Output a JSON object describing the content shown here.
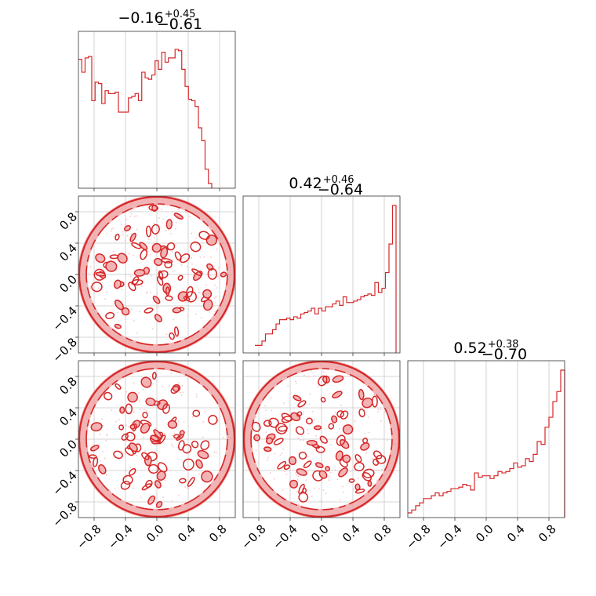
{
  "chart_data": {
    "type": "corner",
    "color": "#d62728",
    "axis_range": [
      -1,
      1
    ],
    "tick_values": [
      -0.8,
      -0.4,
      0.0,
      0.4,
      0.8
    ],
    "tick_labels": [
      "−0.8",
      "−0.4",
      "0.0",
      "0.4",
      "0.8"
    ],
    "grid": true,
    "parameters": [
      {
        "median": "−0.16",
        "plus": "+0.45",
        "minus": "−0.61"
      },
      {
        "median": "0.42",
        "plus": "+0.46",
        "minus": "−0.64"
      },
      {
        "median": "0.52",
        "plus": "+0.38",
        "minus": "−0.70"
      }
    ],
    "histograms": [
      {
        "bin_edges_range": [
          -1,
          0.7
        ],
        "counts": [
          0.87,
          0.78,
          0.88,
          0.89,
          0.58,
          0.71,
          0.7,
          0.56,
          0.65,
          0.63,
          0.63,
          0.64,
          0.5,
          0.5,
          0.5,
          0.6,
          0.61,
          0.63,
          0.58,
          0.78,
          0.74,
          0.73,
          0.76,
          0.86,
          0.8,
          0.92,
          0.85,
          0.88,
          0.88,
          0.94,
          0.93,
          0.8,
          0.68,
          0.59,
          0.58,
          0.54,
          0.39,
          0.3,
          0.1,
          0.0
        ]
      },
      {
        "bin_edges_range": [
          -0.85,
          0.95
        ],
        "counts": [
          0.02,
          0.02,
          0.05,
          0.1,
          0.1,
          0.13,
          0.17,
          0.2,
          0.2,
          0.21,
          0.2,
          0.22,
          0.21,
          0.24,
          0.25,
          0.26,
          0.28,
          0.24,
          0.28,
          0.26,
          0.29,
          0.29,
          0.31,
          0.33,
          0.3,
          0.36,
          0.32,
          0.32,
          0.33,
          0.34,
          0.36,
          0.37,
          0.38,
          0.37,
          0.46,
          0.39,
          0.42,
          0.53,
          0.73,
          1.0
        ]
      },
      {
        "bin_edges_range": [
          -1,
          1
        ],
        "counts": [
          0.0,
          0.02,
          0.05,
          0.07,
          0.1,
          0.1,
          0.12,
          0.14,
          0.12,
          0.14,
          0.15,
          0.17,
          0.17,
          0.18,
          0.2,
          0.19,
          0.16,
          0.28,
          0.25,
          0.26,
          0.26,
          0.24,
          0.26,
          0.29,
          0.28,
          0.29,
          0.31,
          0.35,
          0.32,
          0.33,
          0.38,
          0.36,
          0.41,
          0.5,
          0.48,
          0.6,
          0.67,
          0.78,
          0.85,
          1.0
        ]
      }
    ],
    "contour_pairs": [
      {
        "x_param": 0,
        "y_param": 1
      },
      {
        "x_param": 0,
        "y_param": 2
      },
      {
        "x_param": 1,
        "y_param": 2
      }
    ]
  }
}
